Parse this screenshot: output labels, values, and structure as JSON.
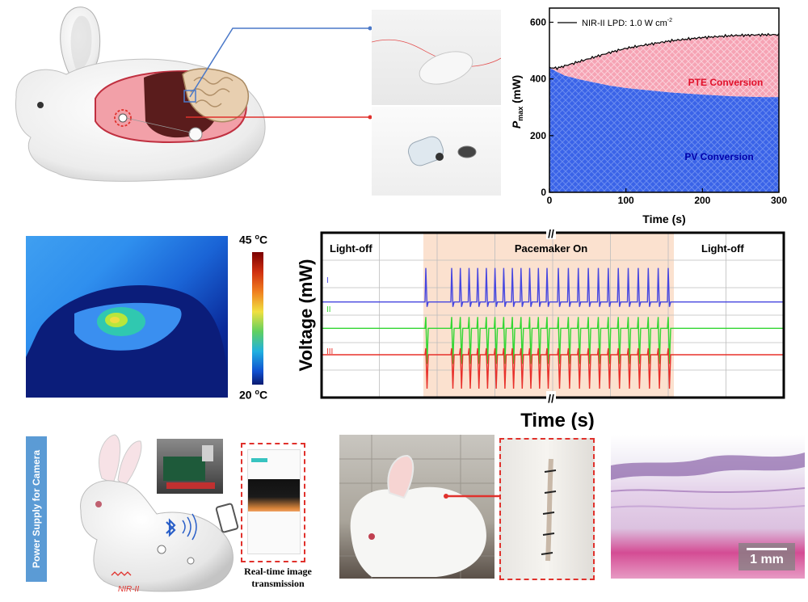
{
  "figure": {
    "colors": {
      "pv_blue": "#3a63e8",
      "pte_pink": "#f6a3b4",
      "trace_i": "#4646e0",
      "trace_ii": "#33d633",
      "trace_iii": "#e8302a",
      "pacemaker_shade": "#fbe1cf",
      "connector_blue": "#4a78c8",
      "connector_red": "#e0312c",
      "sidebar_blue": "#5b9bd5"
    },
    "icons": [
      "rabbit-illustration",
      "wireless-device-photo",
      "battery-capsule-photo",
      "thermal-image",
      "smartphone-icon",
      "bluetooth-icon",
      "camera-setup-photo",
      "rabbit-photo",
      "skin-suture-photo",
      "histology-image"
    ]
  },
  "power_chart": {
    "chart_data": {
      "type": "area",
      "legend": "NIR-II LPD:  1.0 W cm",
      "legend_sup": "-2",
      "xlabel": "Time (s)",
      "ylabel_main": "P",
      "ylabel_sub": "max",
      "ylabel_unit": " (mW)",
      "xlim": [
        0,
        300
      ],
      "ylim": [
        0,
        650
      ],
      "xticks": [
        "0",
        "100",
        "200",
        "300"
      ],
      "yticks": [
        "0",
        "200",
        "400",
        "600"
      ],
      "region_labels": {
        "pte": "PTE Conversion",
        "pv": "PV Conversion"
      },
      "series": [
        {
          "x": [
            0,
            10,
            20,
            40,
            60,
            80,
            100,
            130,
            160,
            200,
            240,
            280,
            300
          ],
          "values": [
            440,
            438,
            446,
            462,
            478,
            494,
            508,
            522,
            535,
            546,
            553,
            556,
            556
          ]
        },
        {
          "x": [
            0,
            10,
            20,
            40,
            60,
            80,
            100,
            130,
            160,
            200,
            240,
            280,
            300
          ],
          "values": [
            440,
            425,
            412,
            398,
            387,
            376,
            368,
            360,
            352,
            345,
            339,
            336,
            336
          ]
        }
      ]
    }
  },
  "thermal": {
    "scale_max": "45 ",
    "scale_min": "20 ",
    "unit_sup": "o",
    "unit": "C"
  },
  "ecg_chart": {
    "chart_data": {
      "type": "line",
      "xlabel": "Time (s)",
      "ylabel": "Voltage (mW)",
      "phase_labels": [
        "Light-off",
        "Pacemaker On",
        "Light-off"
      ],
      "series": [
        {
          "name": "I",
          "baseline": 0.42
        },
        {
          "name": "II",
          "baseline": 0.58
        },
        {
          "name": "III",
          "baseline": 0.74
        }
      ],
      "pulse_count": 24
    }
  },
  "bottom": {
    "sidebar_label": "Power Supply for Camera",
    "nir_label": "NIR-II",
    "caption_line1": "Real-time image",
    "caption_line2": "transmission",
    "scale_bar": "1 mm"
  }
}
